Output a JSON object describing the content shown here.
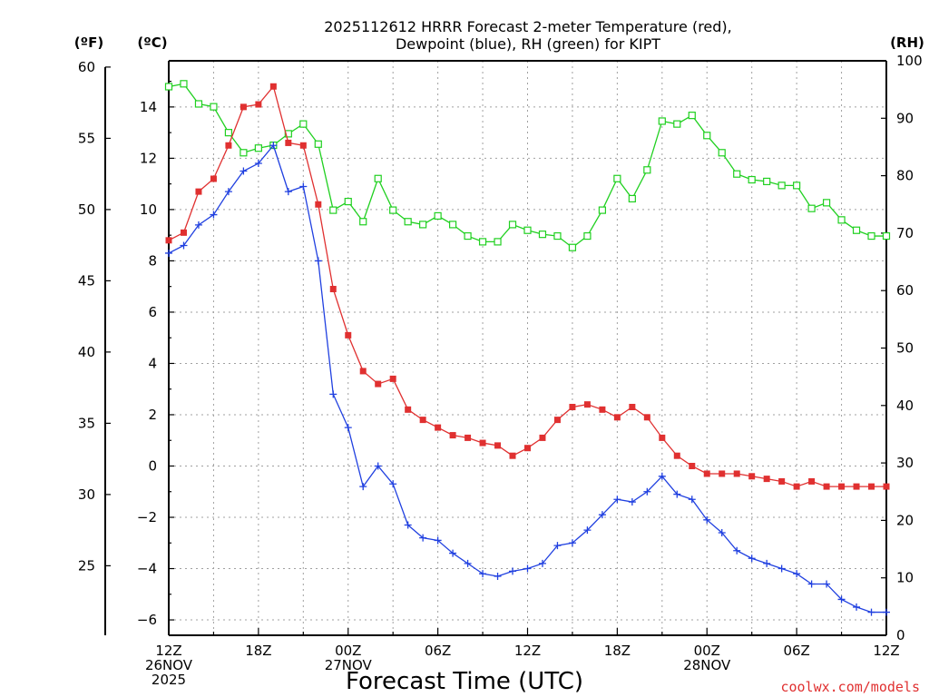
{
  "title_line1": "2025112612 HRRR Forecast 2-meter Temperature (red),",
  "title_line2": "Dewpoint (blue), RH (green) for KIPT",
  "units": {
    "fahrenheit": "(ºF)",
    "celsius": "(ºC)",
    "rh": "(RH)"
  },
  "xlabel": "Forecast Time (UTC)",
  "credit": "coolwx.com/models",
  "colors": {
    "temperature": "#e03030",
    "dewpoint": "#2040e0",
    "rh": "#20d020"
  },
  "chart_data": {
    "type": "line",
    "title": "2025112612 HRRR Forecast 2-meter Temperature (red), Dewpoint (blue), RH (green) for KIPT",
    "xlabel": "Forecast Time (UTC)",
    "x_unit": "forecast hour from 2025-11-26 12Z",
    "x": [
      0,
      1,
      2,
      3,
      4,
      5,
      6,
      7,
      8,
      9,
      10,
      11,
      12,
      13,
      14,
      15,
      16,
      17,
      18,
      19,
      20,
      21,
      22,
      23,
      24,
      25,
      26,
      27,
      28,
      29,
      30,
      31,
      32,
      33,
      34,
      35,
      36,
      37,
      38,
      39,
      40,
      41,
      42,
      43,
      44,
      45,
      46,
      47,
      48
    ],
    "xlim": [
      0,
      48
    ],
    "x_ticks": [
      {
        "hour": 0,
        "lines": [
          "12Z",
          "26NOV",
          "2025"
        ]
      },
      {
        "hour": 6,
        "lines": [
          "18Z"
        ]
      },
      {
        "hour": 12,
        "lines": [
          "00Z",
          "27NOV"
        ]
      },
      {
        "hour": 18,
        "lines": [
          "06Z"
        ]
      },
      {
        "hour": 24,
        "lines": [
          "12Z"
        ]
      },
      {
        "hour": 30,
        "lines": [
          "18Z"
        ]
      },
      {
        "hour": 36,
        "lines": [
          "00Z",
          "28NOV"
        ]
      },
      {
        "hour": 42,
        "lines": [
          "06Z"
        ]
      },
      {
        "hour": 48,
        "lines": [
          "12Z"
        ]
      }
    ],
    "y_celsius_range": [
      -6.6,
      15.8
    ],
    "y_celsius_ticks": [
      14,
      12,
      10,
      8,
      6,
      4,
      2,
      0,
      -2,
      -4,
      -6
    ],
    "y_fahrenheit_ticks": [
      60,
      55,
      50,
      45,
      40,
      35,
      30,
      25
    ],
    "y_rh_range": [
      0,
      100
    ],
    "y_rh_ticks": [
      100,
      90,
      80,
      70,
      60,
      50,
      40,
      30,
      20,
      10,
      0
    ],
    "grid": true,
    "series": [
      {
        "name": "Temperature (red)",
        "axis": "celsius",
        "marker": "filled-square",
        "values": [
          8.8,
          9.1,
          10.7,
          11.2,
          12.5,
          14.0,
          14.1,
          14.8,
          12.6,
          12.5,
          10.2,
          6.9,
          5.1,
          3.7,
          3.2,
          3.4,
          2.2,
          1.8,
          1.5,
          1.2,
          1.1,
          0.9,
          0.8,
          0.4,
          0.7,
          1.1,
          1.8,
          2.3,
          2.4,
          2.2,
          1.9,
          2.3,
          1.9,
          1.1,
          0.4,
          0.0,
          -0.3,
          -0.3,
          -0.3,
          -0.4,
          -0.5,
          -0.6,
          -0.8,
          -0.6,
          -0.8,
          -0.8,
          -0.8,
          -0.8,
          -0.8
        ]
      },
      {
        "name": "Dewpoint (blue)",
        "axis": "celsius",
        "marker": "plus",
        "values": [
          8.3,
          8.6,
          9.4,
          9.8,
          10.7,
          11.5,
          11.8,
          12.5,
          10.7,
          10.9,
          8.0,
          2.8,
          1.5,
          -0.8,
          0.0,
          -0.7,
          -2.3,
          -2.8,
          -2.9,
          -3.4,
          -3.8,
          -4.2,
          -4.3,
          -4.1,
          -4.0,
          -3.8,
          -3.1,
          -3.0,
          -2.5,
          -1.9,
          -1.3,
          -1.4,
          -1.0,
          -0.4,
          -1.1,
          -1.3,
          -2.1,
          -2.6,
          -3.3,
          -3.6,
          -3.8,
          -4.0,
          -4.2,
          -4.6,
          -4.6,
          -5.2,
          -5.5,
          -5.7,
          -5.7
        ]
      },
      {
        "name": "RH (green)",
        "axis": "rh",
        "marker": "open-square",
        "values": [
          95.5,
          96.0,
          92.5,
          92.0,
          87.5,
          84.0,
          84.8,
          85.3,
          87.3,
          89.0,
          85.5,
          74.0,
          75.5,
          72.0,
          79.5,
          74.0,
          72.0,
          71.5,
          73.0,
          71.5,
          69.5,
          68.5,
          68.5,
          71.5,
          70.5,
          69.8,
          69.5,
          67.5,
          69.5,
          74.0,
          79.5,
          76.0,
          81.0,
          89.5,
          89.0,
          90.5,
          87.0,
          84.0,
          80.3,
          79.3,
          79.0,
          78.3,
          78.3,
          74.3,
          75.3,
          72.3,
          70.5,
          69.5,
          69.5
        ]
      }
    ]
  }
}
